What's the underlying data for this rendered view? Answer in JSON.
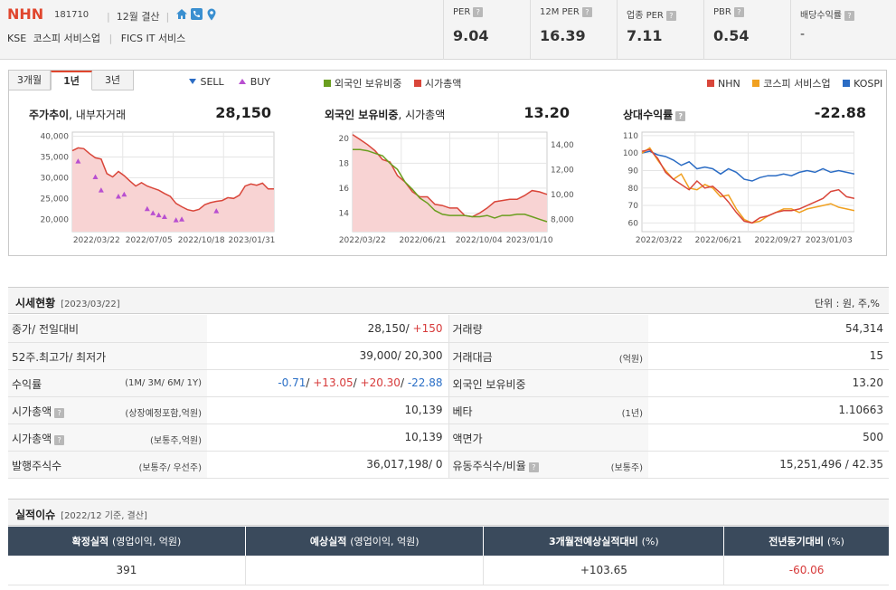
{
  "header": {
    "name": "NHN",
    "code": "181710",
    "fiscal": "12월 결산",
    "exchange": "KSE",
    "industry": "코스피 서비스업",
    "fics": "FICS IT 서비스",
    "ratios": [
      {
        "label": "PER",
        "value": "9.04"
      },
      {
        "label": "12M PER",
        "value": "16.39"
      },
      {
        "label": "업종 PER",
        "value": "7.11"
      },
      {
        "label": "PBR",
        "value": "0.54"
      },
      {
        "label": "배당수익률",
        "value": "-"
      }
    ]
  },
  "chart_tabs": [
    "3개월",
    "1년",
    "3년"
  ],
  "legends": {
    "sell": "SELL",
    "buy": "BUY",
    "foreign": "외국인 보유비중",
    "mcap": "시가총액",
    "nhn": "NHN",
    "kospi_service": "코스피 서비스업",
    "kospi": "KOSPI"
  },
  "colors": {
    "red": "#d9463a",
    "green": "#6a9e1f",
    "orange": "#f0a020",
    "blue": "#2b6cc4",
    "buy": "#b84fd0",
    "sell": "#2b6cc4",
    "fill": "#f8d3d3"
  },
  "panels": [
    {
      "title": "주가추이",
      "subtitle": ", 내부자거래",
      "value": "28,150"
    },
    {
      "title": "외국인 보유비중",
      "subtitle": ", 시가총액",
      "value": "13.20"
    },
    {
      "title": "상대수익률",
      "subtitle": "",
      "value": "-22.88"
    }
  ],
  "chart_data": [
    {
      "type": "area",
      "title": "주가추이, 내부자거래",
      "x_ticks": [
        "2022/03/22",
        "2022/07/05",
        "2022/10/18",
        "2023/01/31"
      ],
      "y_ticks": [
        "40,000",
        "35,000",
        "30,000",
        "25,000",
        "20,000"
      ],
      "ylim": [
        17000,
        41000
      ],
      "series": [
        {
          "name": "시가총액",
          "values": [
            36500,
            37200,
            37000,
            35800,
            34800,
            34500,
            31000,
            30200,
            31500,
            30500,
            29200,
            28000,
            28800,
            28000,
            27500,
            27000,
            26200,
            25500,
            23800,
            23000,
            22300,
            22000,
            22400,
            23500,
            24000,
            24300,
            24500,
            25200,
            25000,
            25800,
            28000,
            28500,
            28200,
            28700,
            27300,
            27300
          ]
        }
      ],
      "buy_markers": [
        [
          1,
          34000
        ],
        [
          4,
          30200
        ],
        [
          5,
          27000
        ],
        [
          8,
          25500
        ],
        [
          9,
          26000
        ],
        [
          13,
          22500
        ],
        [
          14,
          21500
        ],
        [
          15,
          21000
        ],
        [
          16,
          20600
        ],
        [
          18,
          19800
        ],
        [
          19,
          20000
        ],
        [
          25,
          22000
        ]
      ]
    },
    {
      "type": "line",
      "title": "외국인 보유비중, 시가총액",
      "x_ticks": [
        "2022/03/22",
        "2022/06/21",
        "2022/10/04",
        "2023/01/10"
      ],
      "y_ticks_left": [
        "20",
        "18",
        "16",
        "14"
      ],
      "y_ticks_right": [
        "14,000",
        "12,000",
        "10,000",
        "8,000"
      ],
      "ylim_left": [
        12.5,
        20.5
      ],
      "ylim_right": [
        7000,
        15000
      ],
      "series": [
        {
          "name": "외국인 보유비중",
          "values": [
            19.1,
            19.1,
            19.0,
            18.8,
            18.6,
            18.0,
            17.5,
            16.5,
            15.9,
            15.2,
            14.8,
            14.2,
            13.9,
            13.8,
            13.8,
            13.8,
            13.7,
            13.7,
            13.8,
            13.6,
            13.8,
            13.8,
            13.9,
            13.9,
            13.7,
            13.5,
            13.3
          ]
        },
        {
          "name": "시가총액",
          "values": [
            14800,
            14400,
            14000,
            13500,
            12800,
            12600,
            11500,
            11000,
            10200,
            9800,
            9800,
            9200,
            9100,
            8900,
            8900,
            8300,
            8200,
            8500,
            8900,
            9400,
            9500,
            9600,
            9600,
            9900,
            10300,
            10200,
            10000
          ]
        }
      ]
    },
    {
      "type": "line",
      "title": "상대수익률",
      "x_ticks": [
        "2022/03/22",
        "2022/06/21",
        "2022/09/27",
        "2023/01/03"
      ],
      "y_ticks": [
        "110",
        "100",
        "90",
        "80",
        "70",
        "60"
      ],
      "ylim": [
        55,
        112
      ],
      "series": [
        {
          "name": "KOSPI",
          "values": [
            100,
            101,
            99,
            98,
            96,
            93,
            95,
            91,
            92,
            91,
            88,
            91,
            89,
            85,
            84,
            86,
            87,
            87,
            88,
            87,
            89,
            90,
            89,
            91,
            89,
            90,
            89,
            88
          ]
        },
        {
          "name": "코스피 서비스업",
          "values": [
            100,
            103,
            96,
            90,
            85,
            88,
            80,
            79,
            82,
            80,
            75,
            76,
            68,
            62,
            60,
            61,
            64,
            66,
            68,
            68,
            66,
            68,
            69,
            70,
            71,
            69,
            68,
            67
          ]
        },
        {
          "name": "NHN",
          "values": [
            101,
            102,
            97,
            89,
            85,
            82,
            79,
            84,
            80,
            81,
            77,
            72,
            66,
            61,
            60,
            63,
            64,
            66,
            67,
            67,
            68,
            70,
            72,
            74,
            78,
            79,
            75,
            74
          ]
        }
      ]
    }
  ],
  "market_section": {
    "title": "시세현황",
    "date": "[2023/03/22]",
    "unit": "단위 : 원, 주,%"
  },
  "market_rows": [
    {
      "k": "종가/ 전일대비",
      "ks": "",
      "v": "28,150/",
      "vx": "+150",
      "k2": "거래량",
      "k2s": "",
      "v2": "54,314"
    },
    {
      "k": "52주.최고가/ 최저가",
      "ks": "",
      "v": "39,000/ 20,300",
      "vx": "",
      "k2": "거래대금",
      "k2s": "(억원)",
      "v2": "15"
    },
    {
      "k": "수익률",
      "ks": "(1M/ 3M/ 6M/ 1Y)",
      "v": "",
      "vx": "",
      "k2": "외국인 보유비중",
      "k2s": "",
      "v2": "13.20"
    },
    {
      "k": "시가총액",
      "ks": "(상장예정포함,억원)",
      "v": "10,139",
      "vx": "",
      "k2": "베타",
      "k2s": "(1년)",
      "v2": "1.10663"
    },
    {
      "k": "시가총액",
      "ks": "(보통주,억원)",
      "v": "10,139",
      "vx": "",
      "k2": "액면가",
      "k2s": "",
      "v2": "500"
    },
    {
      "k": "발행주식수",
      "ks": "(보통주/ 우선주)",
      "v": "36,017,198/ 0",
      "vx": "",
      "k2": "유동주식수/비율",
      "k2s": "(보통주)",
      "v2": "15,251,496 / 42.35"
    }
  ],
  "returns": {
    "m1": "-0.71",
    "m3": "+13.05",
    "m6": "+20.30",
    "y1": "-22.88"
  },
  "earnings_section": {
    "title": "실적이슈",
    "date": "[2022/12 기준, 결산]"
  },
  "earnings_headers": [
    {
      "t": "확정실적",
      "s": "(영업이익, 억원)"
    },
    {
      "t": "예상실적",
      "s": "(영업이익, 억원)"
    },
    {
      "t": "3개월전예상실적대비",
      "s": "(%)"
    },
    {
      "t": "전년동기대비",
      "s": "(%)"
    }
  ],
  "earnings_row": [
    "391",
    "",
    "+103.65",
    "-60.06"
  ]
}
